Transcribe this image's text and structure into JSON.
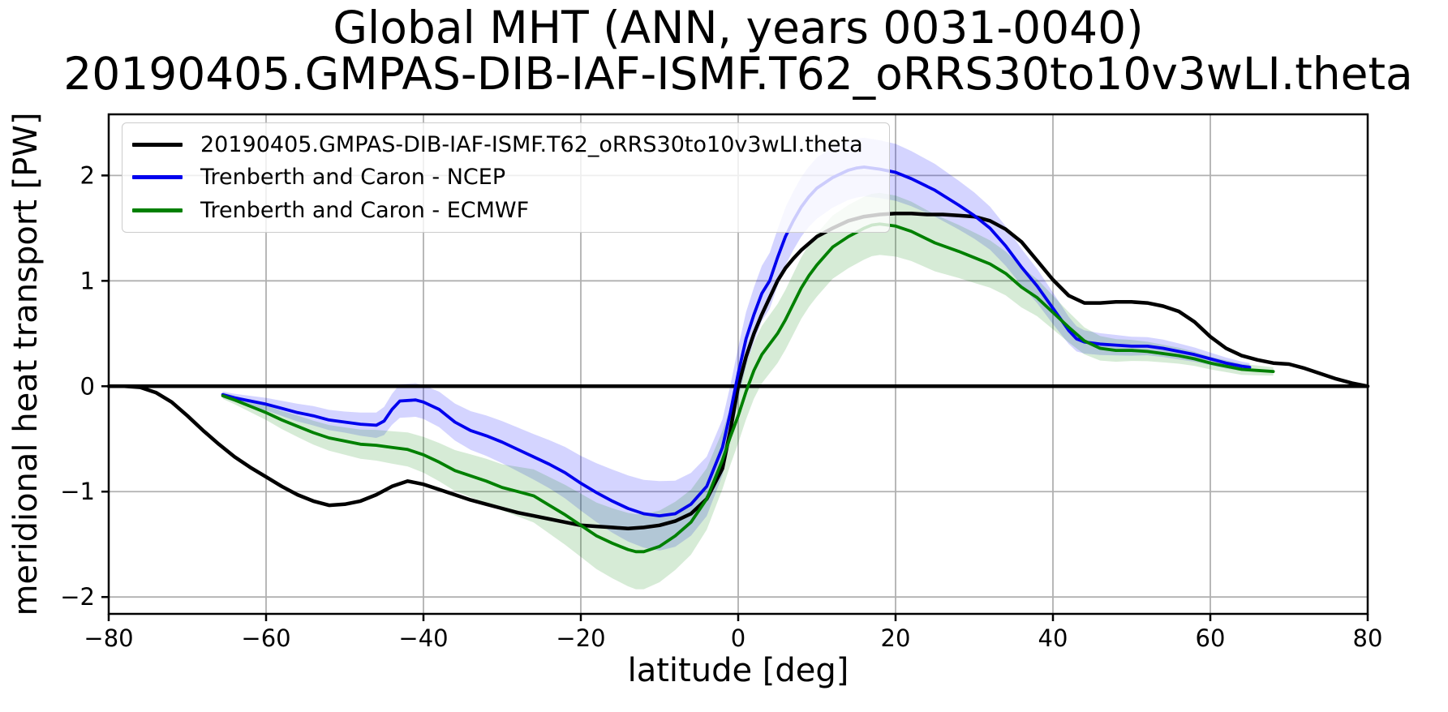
{
  "figure": {
    "title_line1": "Global MHT (ANN, years 0031-0040)",
    "title_line2": "20190405.GMPAS-DIB-IAF-ISMF.T62_oRRS30to10v3wLI.theta",
    "xlabel": "latitude [deg]",
    "ylabel": "meridional heat transport [PW]"
  },
  "legend": {
    "position": "upper left",
    "entries": [
      {
        "label": "20190405.GMPAS-DIB-IAF-ISMF.T62_oRRS30to10v3wLI.theta",
        "color": "#000000"
      },
      {
        "label": "Trenberth and Caron - NCEP",
        "color": "#0000ee"
      },
      {
        "label": "Trenberth and Caron - ECMWF",
        "color": "#008000"
      }
    ]
  },
  "chart_data": {
    "type": "line",
    "title": "Global MHT (ANN, years 0031-0040)",
    "subtitle": "20190405.GMPAS-DIB-IAF-ISMF.T62_oRRS30to10v3wLI.theta",
    "xlabel": "latitude [deg]",
    "ylabel": "meridional heat transport [PW]",
    "xlim": [
      -80,
      80
    ],
    "ylim": [
      -2.16,
      2.58
    ],
    "grid": true,
    "grid_color": "#b0b0b0",
    "zero_line": {
      "y": 0,
      "color": "#000000",
      "width": 4.5
    },
    "x_ticks": {
      "values": [
        -80,
        -60,
        -40,
        -20,
        0,
        20,
        40,
        60,
        80
      ],
      "labels": [
        "−80",
        "−60",
        "−40",
        "−20",
        "0",
        "20",
        "40",
        "60",
        "80"
      ]
    },
    "y_ticks": {
      "values": [
        -2,
        -1,
        0,
        1,
        2
      ],
      "labels": [
        "−2",
        "−1",
        "0",
        "1",
        "2"
      ]
    },
    "series": [
      {
        "name": "20190405.GMPAS-DIB-IAF-ISMF.T62_oRRS30to10v3wLI.theta",
        "color": "#000000",
        "line_width": 4.5,
        "points": [
          [
            -80,
            0.0
          ],
          [
            -78,
            0.0
          ],
          [
            -76,
            -0.01
          ],
          [
            -74,
            -0.06
          ],
          [
            -72,
            -0.15
          ],
          [
            -70,
            -0.28
          ],
          [
            -68,
            -0.42
          ],
          [
            -66,
            -0.55
          ],
          [
            -64,
            -0.67
          ],
          [
            -62,
            -0.77
          ],
          [
            -60,
            -0.86
          ],
          [
            -58,
            -0.95
          ],
          [
            -56,
            -1.03
          ],
          [
            -54,
            -1.09
          ],
          [
            -52,
            -1.13
          ],
          [
            -50,
            -1.12
          ],
          [
            -48,
            -1.09
          ],
          [
            -46,
            -1.03
          ],
          [
            -44,
            -0.95
          ],
          [
            -42,
            -0.9
          ],
          [
            -40,
            -0.93
          ],
          [
            -38,
            -0.98
          ],
          [
            -36,
            -1.03
          ],
          [
            -34,
            -1.08
          ],
          [
            -32,
            -1.12
          ],
          [
            -30,
            -1.16
          ],
          [
            -28,
            -1.2
          ],
          [
            -26,
            -1.23
          ],
          [
            -24,
            -1.26
          ],
          [
            -22,
            -1.29
          ],
          [
            -20,
            -1.32
          ],
          [
            -18,
            -1.33
          ],
          [
            -16,
            -1.34
          ],
          [
            -14,
            -1.35
          ],
          [
            -12,
            -1.34
          ],
          [
            -10,
            -1.32
          ],
          [
            -8,
            -1.28
          ],
          [
            -6,
            -1.21
          ],
          [
            -4,
            -1.07
          ],
          [
            -2,
            -0.78
          ],
          [
            -1,
            -0.42
          ],
          [
            0,
            0.0
          ],
          [
            1,
            0.28
          ],
          [
            2,
            0.5
          ],
          [
            3,
            0.68
          ],
          [
            4,
            0.84
          ],
          [
            5,
            1.0
          ],
          [
            6,
            1.12
          ],
          [
            7,
            1.21
          ],
          [
            8,
            1.29
          ],
          [
            10,
            1.42
          ],
          [
            12,
            1.5
          ],
          [
            14,
            1.57
          ],
          [
            16,
            1.61
          ],
          [
            18,
            1.63
          ],
          [
            20,
            1.64
          ],
          [
            22,
            1.64
          ],
          [
            24,
            1.63
          ],
          [
            26,
            1.63
          ],
          [
            28,
            1.62
          ],
          [
            30,
            1.61
          ],
          [
            32,
            1.57
          ],
          [
            34,
            1.49
          ],
          [
            36,
            1.37
          ],
          [
            38,
            1.19
          ],
          [
            40,
            1.01
          ],
          [
            42,
            0.86
          ],
          [
            44,
            0.79
          ],
          [
            46,
            0.79
          ],
          [
            48,
            0.8
          ],
          [
            50,
            0.8
          ],
          [
            52,
            0.79
          ],
          [
            54,
            0.76
          ],
          [
            56,
            0.71
          ],
          [
            58,
            0.61
          ],
          [
            60,
            0.47
          ],
          [
            62,
            0.36
          ],
          [
            64,
            0.29
          ],
          [
            66,
            0.25
          ],
          [
            68,
            0.22
          ],
          [
            70,
            0.21
          ],
          [
            72,
            0.17
          ],
          [
            74,
            0.12
          ],
          [
            76,
            0.07
          ],
          [
            78,
            0.03
          ],
          [
            80,
            0.0
          ]
        ]
      },
      {
        "name": "Trenberth and Caron - NCEP",
        "color": "#0000ee",
        "line_width": 3.8,
        "band_color": "rgba(0,0,255,0.17)",
        "points": [
          [
            -65.5,
            -0.08
          ],
          [
            -64,
            -0.11
          ],
          [
            -62,
            -0.14
          ],
          [
            -60,
            -0.17
          ],
          [
            -58,
            -0.21
          ],
          [
            -56,
            -0.25
          ],
          [
            -54,
            -0.28
          ],
          [
            -52,
            -0.32
          ],
          [
            -50,
            -0.34
          ],
          [
            -48,
            -0.36
          ],
          [
            -46,
            -0.37
          ],
          [
            -45,
            -0.33
          ],
          [
            -44,
            -0.22
          ],
          [
            -43,
            -0.14
          ],
          [
            -41,
            -0.13
          ],
          [
            -40,
            -0.15
          ],
          [
            -38,
            -0.22
          ],
          [
            -36,
            -0.34
          ],
          [
            -34,
            -0.42
          ],
          [
            -32,
            -0.47
          ],
          [
            -30,
            -0.53
          ],
          [
            -28,
            -0.6
          ],
          [
            -26,
            -0.67
          ],
          [
            -24,
            -0.74
          ],
          [
            -22,
            -0.82
          ],
          [
            -20,
            -0.92
          ],
          [
            -18,
            -1.01
          ],
          [
            -16,
            -1.09
          ],
          [
            -14,
            -1.16
          ],
          [
            -12,
            -1.21
          ],
          [
            -10,
            -1.23
          ],
          [
            -8,
            -1.21
          ],
          [
            -6,
            -1.12
          ],
          [
            -4,
            -0.95
          ],
          [
            -2,
            -0.58
          ],
          [
            -1,
            -0.25
          ],
          [
            0,
            0.12
          ],
          [
            1,
            0.45
          ],
          [
            2,
            0.68
          ],
          [
            3,
            0.88
          ],
          [
            4,
            1.0
          ],
          [
            5,
            1.22
          ],
          [
            6,
            1.42
          ],
          [
            7,
            1.57
          ],
          [
            8,
            1.7
          ],
          [
            9,
            1.8
          ],
          [
            10,
            1.88
          ],
          [
            12,
            1.98
          ],
          [
            14,
            2.05
          ],
          [
            15,
            2.07
          ],
          [
            16,
            2.08
          ],
          [
            18,
            2.06
          ],
          [
            20,
            2.03
          ],
          [
            22,
            1.97
          ],
          [
            25,
            1.86
          ],
          [
            28,
            1.72
          ],
          [
            30,
            1.62
          ],
          [
            32,
            1.5
          ],
          [
            34,
            1.33
          ],
          [
            36,
            1.13
          ],
          [
            38,
            0.95
          ],
          [
            40,
            0.74
          ],
          [
            42,
            0.53
          ],
          [
            43,
            0.45
          ],
          [
            44,
            0.42
          ],
          [
            46,
            0.4
          ],
          [
            48,
            0.39
          ],
          [
            50,
            0.38
          ],
          [
            52,
            0.38
          ],
          [
            54,
            0.36
          ],
          [
            56,
            0.33
          ],
          [
            58,
            0.3
          ],
          [
            60,
            0.26
          ],
          [
            62,
            0.22
          ],
          [
            64,
            0.19
          ],
          [
            65,
            0.18
          ]
        ],
        "band_half_width": [
          [
            -65.5,
            0.03
          ],
          [
            -60,
            0.06
          ],
          [
            -55,
            0.09
          ],
          [
            -50,
            0.1
          ],
          [
            -46,
            0.12
          ],
          [
            -43,
            0.16
          ],
          [
            -40,
            0.16
          ],
          [
            -35,
            0.18
          ],
          [
            -30,
            0.2
          ],
          [
            -25,
            0.22
          ],
          [
            -20,
            0.26
          ],
          [
            -15,
            0.31
          ],
          [
            -10,
            0.33
          ],
          [
            -5,
            0.29
          ],
          [
            0,
            0.25
          ],
          [
            5,
            0.27
          ],
          [
            10,
            0.29
          ],
          [
            15,
            0.28
          ],
          [
            20,
            0.27
          ],
          [
            25,
            0.25
          ],
          [
            30,
            0.22
          ],
          [
            35,
            0.18
          ],
          [
            40,
            0.15
          ],
          [
            44,
            0.11
          ],
          [
            50,
            0.09
          ],
          [
            55,
            0.08
          ],
          [
            60,
            0.06
          ],
          [
            65,
            0.04
          ]
        ]
      },
      {
        "name": "Trenberth and Caron - ECMWF",
        "color": "#008000",
        "line_width": 3.8,
        "band_color": "rgba(0,128,0,0.16)",
        "points": [
          [
            -65.5,
            -0.09
          ],
          [
            -64,
            -0.13
          ],
          [
            -62,
            -0.19
          ],
          [
            -60,
            -0.25
          ],
          [
            -58,
            -0.32
          ],
          [
            -56,
            -0.38
          ],
          [
            -54,
            -0.44
          ],
          [
            -52,
            -0.49
          ],
          [
            -50,
            -0.52
          ],
          [
            -48,
            -0.55
          ],
          [
            -46,
            -0.56
          ],
          [
            -44,
            -0.58
          ],
          [
            -42,
            -0.6
          ],
          [
            -40,
            -0.65
          ],
          [
            -38,
            -0.72
          ],
          [
            -36,
            -0.8
          ],
          [
            -34,
            -0.85
          ],
          [
            -32,
            -0.9
          ],
          [
            -30,
            -0.96
          ],
          [
            -28,
            -1.0
          ],
          [
            -26,
            -1.04
          ],
          [
            -24,
            -1.13
          ],
          [
            -22,
            -1.22
          ],
          [
            -20,
            -1.32
          ],
          [
            -18,
            -1.42
          ],
          [
            -16,
            -1.49
          ],
          [
            -14,
            -1.55
          ],
          [
            -13,
            -1.57
          ],
          [
            -12,
            -1.57
          ],
          [
            -10,
            -1.52
          ],
          [
            -8,
            -1.42
          ],
          [
            -6,
            -1.29
          ],
          [
            -4,
            -1.07
          ],
          [
            -2,
            -0.7
          ],
          [
            -1,
            -0.48
          ],
          [
            0,
            -0.28
          ],
          [
            1,
            -0.05
          ],
          [
            2,
            0.15
          ],
          [
            3,
            0.3
          ],
          [
            4,
            0.4
          ],
          [
            5,
            0.5
          ],
          [
            6,
            0.63
          ],
          [
            7,
            0.78
          ],
          [
            8,
            0.93
          ],
          [
            9,
            1.05
          ],
          [
            10,
            1.15
          ],
          [
            12,
            1.32
          ],
          [
            14,
            1.42
          ],
          [
            16,
            1.5
          ],
          [
            17,
            1.53
          ],
          [
            18,
            1.54
          ],
          [
            20,
            1.52
          ],
          [
            22,
            1.47
          ],
          [
            25,
            1.36
          ],
          [
            28,
            1.28
          ],
          [
            30,
            1.22
          ],
          [
            32,
            1.16
          ],
          [
            34,
            1.07
          ],
          [
            36,
            0.94
          ],
          [
            38,
            0.84
          ],
          [
            40,
            0.7
          ],
          [
            42,
            0.56
          ],
          [
            44,
            0.43
          ],
          [
            46,
            0.36
          ],
          [
            48,
            0.34
          ],
          [
            50,
            0.34
          ],
          [
            52,
            0.33
          ],
          [
            54,
            0.31
          ],
          [
            56,
            0.29
          ],
          [
            58,
            0.26
          ],
          [
            60,
            0.22
          ],
          [
            62,
            0.19
          ],
          [
            64,
            0.16
          ],
          [
            66,
            0.15
          ],
          [
            68,
            0.14
          ]
        ],
        "band_half_width": [
          [
            -65.5,
            0.03
          ],
          [
            -60,
            0.07
          ],
          [
            -55,
            0.11
          ],
          [
            -50,
            0.13
          ],
          [
            -45,
            0.15
          ],
          [
            -40,
            0.17
          ],
          [
            -35,
            0.2
          ],
          [
            -30,
            0.22
          ],
          [
            -25,
            0.26
          ],
          [
            -20,
            0.3
          ],
          [
            -15,
            0.34
          ],
          [
            -12.5,
            0.36
          ],
          [
            -10,
            0.34
          ],
          [
            -5,
            0.3
          ],
          [
            0,
            0.26
          ],
          [
            5,
            0.28
          ],
          [
            10,
            0.3
          ],
          [
            15,
            0.3
          ],
          [
            20,
            0.29
          ],
          [
            25,
            0.27
          ],
          [
            30,
            0.24
          ],
          [
            35,
            0.2
          ],
          [
            40,
            0.16
          ],
          [
            45,
            0.12
          ],
          [
            50,
            0.1
          ],
          [
            55,
            0.08
          ],
          [
            60,
            0.06
          ],
          [
            65,
            0.05
          ],
          [
            68,
            0.04
          ]
        ]
      }
    ]
  }
}
